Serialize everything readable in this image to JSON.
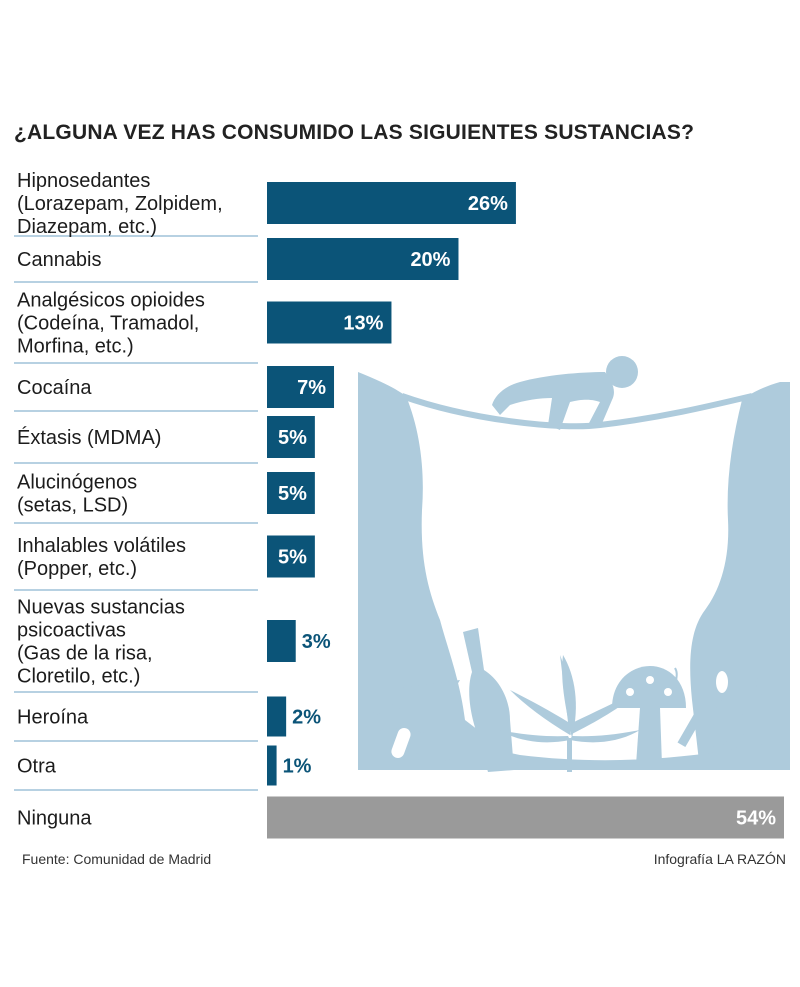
{
  "chart_data": {
    "type": "bar",
    "orientation": "horizontal",
    "title": "¿ALGUNA VEZ HAS CONSUMIDO LAS SIGUIENTES SUSTANCIAS?",
    "unit": "%",
    "categories": [
      [
        "Hipnosedantes",
        "(Lorazepam, Zolpidem,",
        "Diazepam, etc.)"
      ],
      [
        "Cannabis"
      ],
      [
        "Analgésicos opioides",
        "(Codeína, Tramadol,",
        "Morfina, etc.)"
      ],
      [
        "Cocaína"
      ],
      [
        "Éxtasis (MDMA)"
      ],
      [
        "Alucinógenos",
        "(setas, LSD)"
      ],
      [
        "Inhalables volátiles",
        "(Popper, etc.)"
      ],
      [
        "Nuevas sustancias",
        "psicoactivas",
        "(Gas de la risa,",
        "Cloretilo, etc.)"
      ],
      [
        "Heroína"
      ],
      [
        "Otra"
      ],
      [
        "Ninguna"
      ]
    ],
    "values": [
      26,
      20,
      13,
      7,
      5,
      5,
      5,
      3,
      2,
      1,
      54
    ],
    "value_labels": [
      "26%",
      "20%",
      "13%",
      "7%",
      "5%",
      "5%",
      "5%",
      "3%",
      "2%",
      "1%",
      "54%"
    ],
    "colors": {
      "bar": "#0b5478",
      "highlight_bar": "#9a9a9a",
      "separator": "#6fa3c4",
      "illustration": "#aecbdc"
    },
    "xlim": [
      0,
      54
    ],
    "grid": false,
    "legend": "none"
  },
  "footer": {
    "source": "Fuente: Comunidad de Madrid",
    "credit": "Infografía LA RAZÓN"
  },
  "illustration": {
    "name": "drug-illustration",
    "items": [
      "person-crawling-on-rope-icon",
      "pill-icon",
      "cocktail-glass-icon",
      "bottle-icon",
      "cannabis-leaf-icon",
      "mushroom-icon",
      "cigarette-icon",
      "spoon-icon",
      "syringe-icon"
    ]
  }
}
